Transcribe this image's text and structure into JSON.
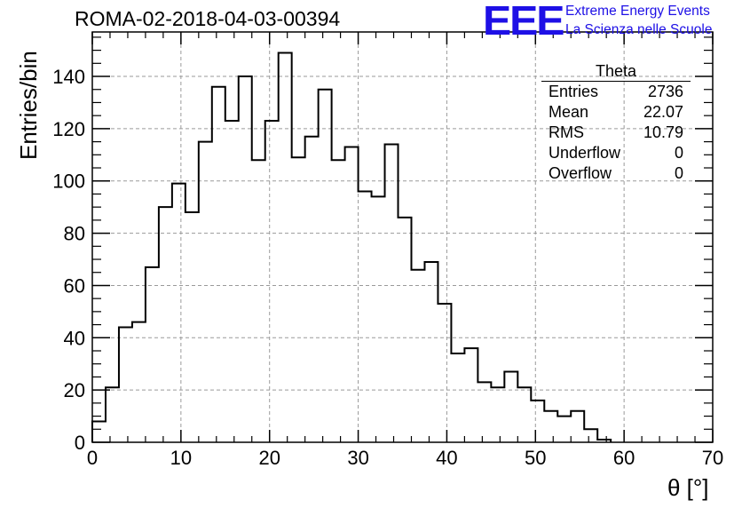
{
  "chart_data": {
    "type": "bar",
    "style": "step-histogram",
    "title": "ROMA-02-2018-04-03-00394",
    "xlabel": "θ [°]",
    "ylabel": "Entries/bin",
    "xlim": [
      0,
      70
    ],
    "ylim": [
      0,
      157
    ],
    "grid": true,
    "bin_width": 1.5,
    "xticks": [
      0,
      10,
      20,
      30,
      40,
      50,
      60,
      70
    ],
    "yticks": [
      0,
      20,
      40,
      60,
      80,
      100,
      120,
      140
    ],
    "bins": [
      {
        "x0": 0.0,
        "value": 8
      },
      {
        "x0": 1.5,
        "value": 21
      },
      {
        "x0": 3.0,
        "value": 44
      },
      {
        "x0": 4.5,
        "value": 46
      },
      {
        "x0": 6.0,
        "value": 67
      },
      {
        "x0": 7.5,
        "value": 90
      },
      {
        "x0": 9.0,
        "value": 99
      },
      {
        "x0": 10.5,
        "value": 88
      },
      {
        "x0": 12.0,
        "value": 115
      },
      {
        "x0": 13.5,
        "value": 136
      },
      {
        "x0": 15.0,
        "value": 123
      },
      {
        "x0": 16.5,
        "value": 140
      },
      {
        "x0": 18.0,
        "value": 108
      },
      {
        "x0": 19.5,
        "value": 123
      },
      {
        "x0": 21.0,
        "value": 149
      },
      {
        "x0": 22.5,
        "value": 109
      },
      {
        "x0": 24.0,
        "value": 117
      },
      {
        "x0": 25.5,
        "value": 135
      },
      {
        "x0": 27.0,
        "value": 108
      },
      {
        "x0": 28.5,
        "value": 113
      },
      {
        "x0": 30.0,
        "value": 96
      },
      {
        "x0": 31.5,
        "value": 94
      },
      {
        "x0": 33.0,
        "value": 114
      },
      {
        "x0": 34.5,
        "value": 86
      },
      {
        "x0": 36.0,
        "value": 66
      },
      {
        "x0": 37.5,
        "value": 69
      },
      {
        "x0": 39.0,
        "value": 53
      },
      {
        "x0": 40.5,
        "value": 34
      },
      {
        "x0": 42.0,
        "value": 36
      },
      {
        "x0": 43.5,
        "value": 23
      },
      {
        "x0": 45.0,
        "value": 21
      },
      {
        "x0": 46.5,
        "value": 27
      },
      {
        "x0": 48.0,
        "value": 21
      },
      {
        "x0": 49.5,
        "value": 16
      },
      {
        "x0": 51.0,
        "value": 12
      },
      {
        "x0": 52.5,
        "value": 10
      },
      {
        "x0": 54.0,
        "value": 12
      },
      {
        "x0": 55.5,
        "value": 5
      },
      {
        "x0": 57.0,
        "value": 1
      }
    ],
    "stats": {
      "title": "Theta",
      "rows": [
        {
          "label": "Entries",
          "value": "2736"
        },
        {
          "label": "Mean",
          "value": "22.07"
        },
        {
          "label": "RMS",
          "value": "10.79"
        },
        {
          "label": "Underflow",
          "value": "0"
        },
        {
          "label": "Overflow",
          "value": "0"
        }
      ]
    }
  },
  "logo": {
    "mark": "EEE",
    "line1": "Extreme Energy Events",
    "line2": "La Scienza nelle Scuole"
  },
  "colors": {
    "logo": "#1e10e6",
    "line": "#000000",
    "grid": "#9a9a9a"
  }
}
